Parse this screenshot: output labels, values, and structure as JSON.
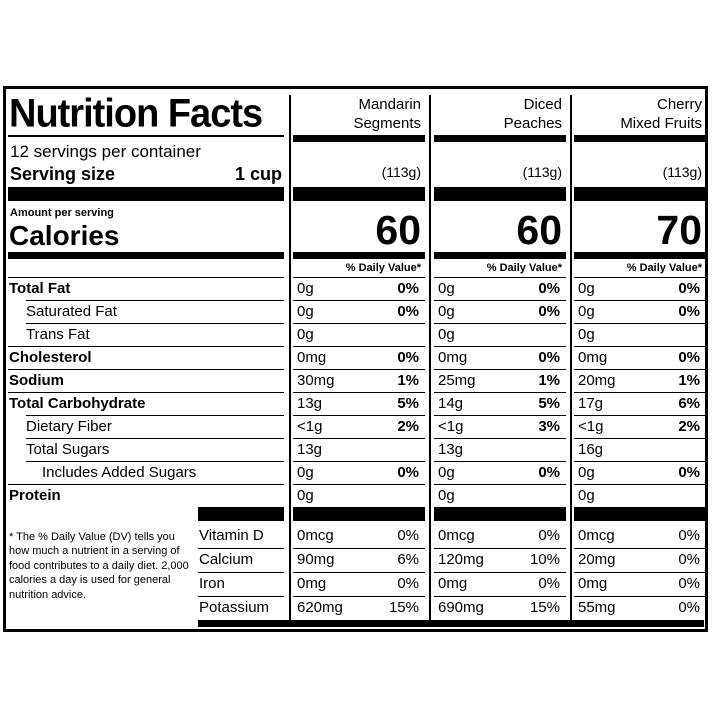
{
  "label": {
    "title": "Nutrition Facts",
    "servings_per_container": "12 servings per container",
    "serving_size_label": "Serving size",
    "serving_size_value": "1 cup",
    "amount_per_serving": "Amount per serving",
    "calories_label": "Calories",
    "dv_header": "% Daily Value*",
    "nutrients": [
      {
        "name": "Total Fat",
        "bold": true
      },
      {
        "name": "Saturated Fat",
        "bold": false
      },
      {
        "name": "Trans Fat",
        "bold": false
      },
      {
        "name": "Cholesterol",
        "bold": true
      },
      {
        "name": "Sodium",
        "bold": true
      },
      {
        "name": "Total Carbohydrate",
        "bold": true
      },
      {
        "name": "Dietary Fiber",
        "bold": false
      },
      {
        "name": "Total Sugars",
        "bold": false
      },
      {
        "name": "Includes Added Sugars",
        "bold": false
      },
      {
        "name": "Protein",
        "bold": true
      }
    ],
    "vitamins": [
      "Vitamin D",
      "Calcium",
      "Iron",
      "Potassium"
    ],
    "footnote": "* The % Daily Value (DV) tells you how much a nutrient in a serving of food contributes to a daily diet. 2,000 calories a day is used for general nutrition advice."
  },
  "products": [
    {
      "name_line1": "Mandarin",
      "name_line2": "Segments",
      "serving_grams": "(113g)",
      "calories": "60",
      "nutrients": [
        {
          "amount": "0g",
          "dv": "0%"
        },
        {
          "amount": "0g",
          "dv": "0%"
        },
        {
          "amount": "0g",
          "dv": ""
        },
        {
          "amount": "0mg",
          "dv": "0%"
        },
        {
          "amount": "30mg",
          "dv": "1%"
        },
        {
          "amount": "13g",
          "dv": "5%"
        },
        {
          "amount": "<1g",
          "dv": "2%"
        },
        {
          "amount": "13g",
          "dv": ""
        },
        {
          "amount": "0g",
          "dv": "0%"
        },
        {
          "amount": "0g",
          "dv": ""
        }
      ],
      "vitamins": [
        {
          "amount": "0mcg",
          "dv": "0%"
        },
        {
          "amount": "90mg",
          "dv": "6%"
        },
        {
          "amount": "0mg",
          "dv": "0%"
        },
        {
          "amount": "620mg",
          "dv": "15%"
        }
      ]
    },
    {
      "name_line1": "Diced",
      "name_line2": "Peaches",
      "serving_grams": "(113g)",
      "calories": "60",
      "nutrients": [
        {
          "amount": "0g",
          "dv": "0%"
        },
        {
          "amount": "0g",
          "dv": "0%"
        },
        {
          "amount": "0g",
          "dv": ""
        },
        {
          "amount": "0mg",
          "dv": "0%"
        },
        {
          "amount": "25mg",
          "dv": "1%"
        },
        {
          "amount": "14g",
          "dv": "5%"
        },
        {
          "amount": "<1g",
          "dv": "3%"
        },
        {
          "amount": "13g",
          "dv": ""
        },
        {
          "amount": "0g",
          "dv": "0%"
        },
        {
          "amount": "0g",
          "dv": ""
        }
      ],
      "vitamins": [
        {
          "amount": "0mcg",
          "dv": "0%"
        },
        {
          "amount": "120mg",
          "dv": "10%"
        },
        {
          "amount": "0mg",
          "dv": "0%"
        },
        {
          "amount": "690mg",
          "dv": "15%"
        }
      ]
    },
    {
      "name_line1": "Cherry",
      "name_line2": "Mixed Fruits",
      "serving_grams": "(113g)",
      "calories": "70",
      "nutrients": [
        {
          "amount": "0g",
          "dv": "0%"
        },
        {
          "amount": "0g",
          "dv": "0%"
        },
        {
          "amount": "0g",
          "dv": ""
        },
        {
          "amount": "0mg",
          "dv": "0%"
        },
        {
          "amount": "20mg",
          "dv": "1%"
        },
        {
          "amount": "17g",
          "dv": "6%"
        },
        {
          "amount": "<1g",
          "dv": "2%"
        },
        {
          "amount": "16g",
          "dv": ""
        },
        {
          "amount": "0g",
          "dv": "0%"
        },
        {
          "amount": "0g",
          "dv": ""
        }
      ],
      "vitamins": [
        {
          "amount": "0mcg",
          "dv": "0%"
        },
        {
          "amount": "20mg",
          "dv": "0%"
        },
        {
          "amount": "0mg",
          "dv": "0%"
        },
        {
          "amount": "55mg",
          "dv": "0%"
        }
      ]
    }
  ]
}
